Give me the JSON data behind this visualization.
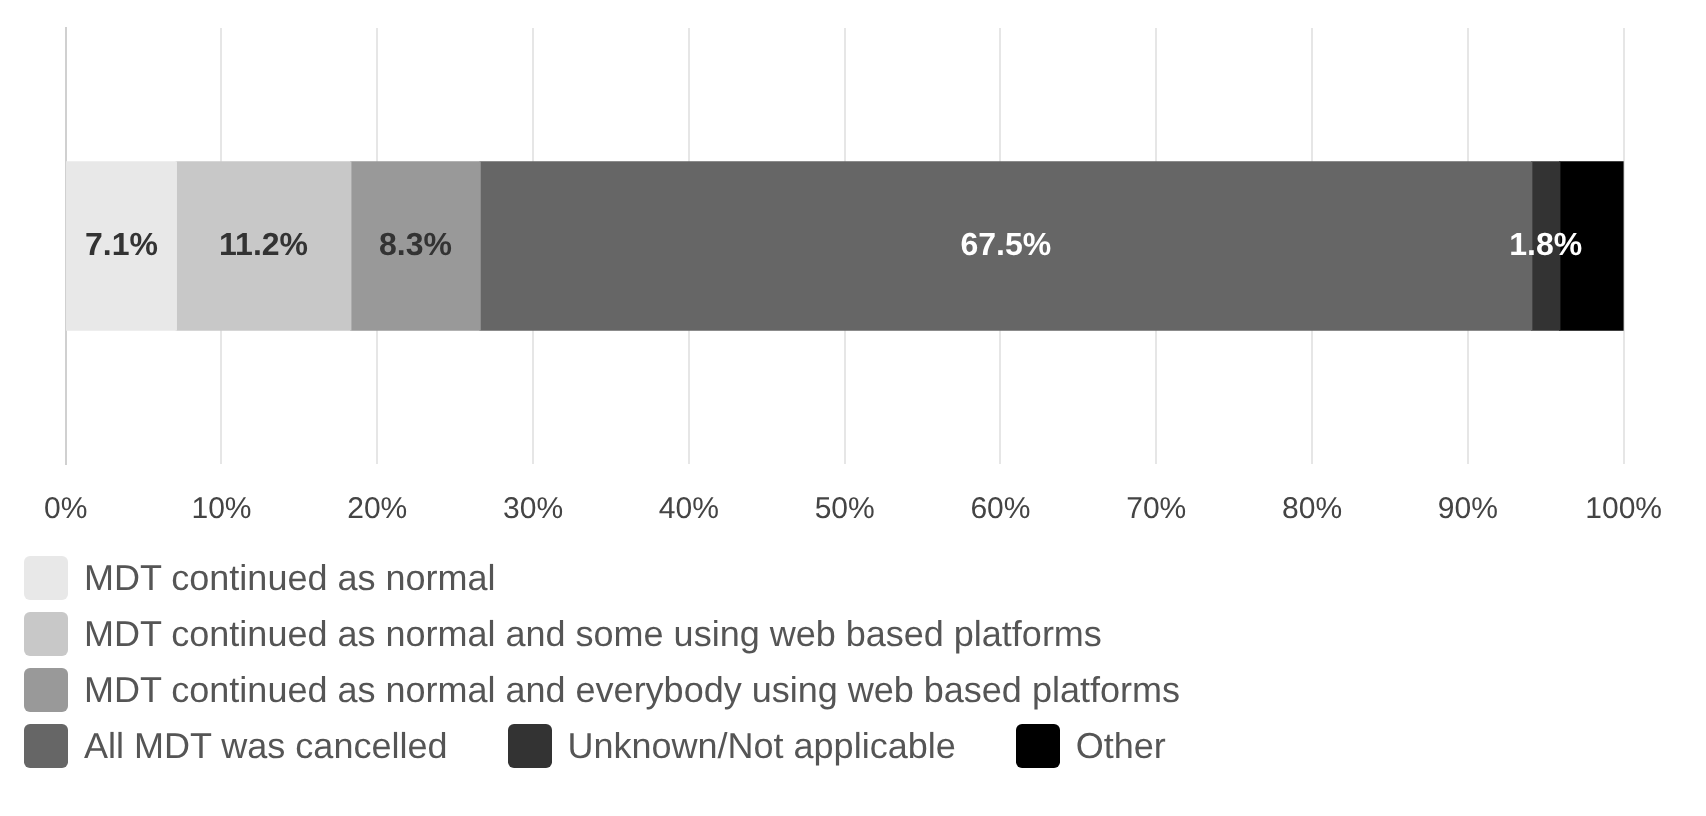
{
  "chart_data": {
    "type": "bar",
    "orientation": "horizontal",
    "stacked": true,
    "categories": [
      null
    ],
    "series": [
      {
        "name": "MDT continued as normal",
        "color": "#e8e8e8",
        "values": [
          7.1
        ],
        "value_labels": [
          "7.1%"
        ]
      },
      {
        "name": "MDT continued as normal and some using web based platforms",
        "color": "#c8c8c8",
        "values": [
          11.2
        ],
        "value_labels": [
          "11.2%"
        ]
      },
      {
        "name": "MDT continued as normal and everybody using web based platforms",
        "color": "#999999",
        "values": [
          8.3
        ],
        "value_labels": [
          "8.3%"
        ]
      },
      {
        "name": "All MDT was cancelled",
        "color": "#666666",
        "values": [
          67.5
        ],
        "value_labels": [
          "67.5%"
        ]
      },
      {
        "name": "Unknown/Not applicable",
        "color": "#333333",
        "values": [
          1.8
        ],
        "value_labels": [
          "1.8%"
        ]
      },
      {
        "name": "Other",
        "color": "#000000",
        "values": [
          4.1
        ],
        "value_labels": [
          null
        ]
      }
    ],
    "xlim": [
      0,
      100
    ],
    "xticks": [
      {
        "value": 0,
        "label": "0%"
      },
      {
        "value": 10,
        "label": "10%"
      },
      {
        "value": 20,
        "label": "20%"
      },
      {
        "value": 30,
        "label": "30%"
      },
      {
        "value": 40,
        "label": "40%"
      },
      {
        "value": 50,
        "label": "50%"
      },
      {
        "value": 60,
        "label": "60%"
      },
      {
        "value": 70,
        "label": "70%"
      },
      {
        "value": 80,
        "label": "80%"
      },
      {
        "value": 90,
        "label": "90%"
      },
      {
        "value": 100,
        "label": "100%"
      }
    ],
    "grid": "x",
    "legend": "bottom"
  }
}
